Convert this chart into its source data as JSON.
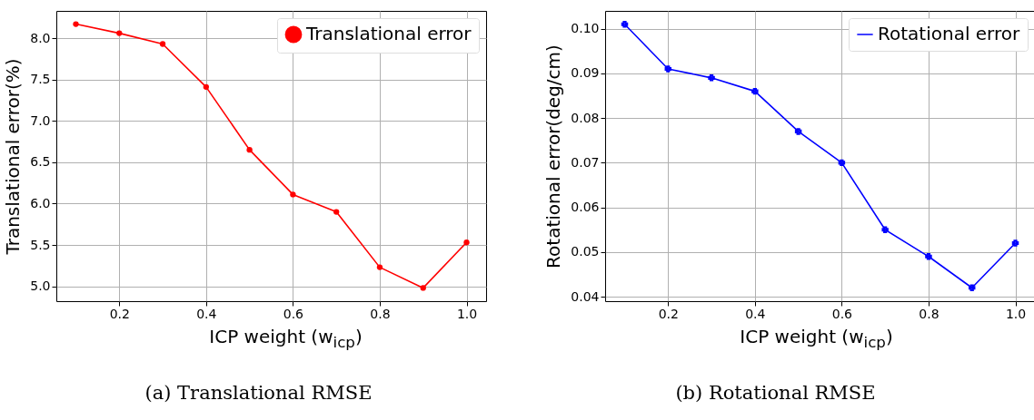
{
  "chart_data": [
    {
      "type": "line",
      "title": "(a) Translational RMSE",
      "xlabel": "ICP weight (w$_{icp}$)",
      "ylabel": "Translational error(%)",
      "x": [
        0.1,
        0.2,
        0.3,
        0.4,
        0.5,
        0.6,
        0.7,
        0.8,
        0.9,
        1.0
      ],
      "series": [
        {
          "name": "Translational error",
          "color": "#ff0000",
          "values": [
            8.17,
            8.06,
            7.93,
            7.41,
            6.65,
            6.11,
            5.9,
            5.23,
            4.98,
            5.53
          ]
        }
      ],
      "xlim": [
        0.055,
        1.045
      ],
      "xticks": [
        {
          "value": 0.2,
          "label": "0.2"
        },
        {
          "value": 0.4,
          "label": "0.4"
        },
        {
          "value": 0.6,
          "label": "0.6"
        },
        {
          "value": 0.8,
          "label": "0.8"
        },
        {
          "value": 1.0,
          "label": "1.0"
        }
      ],
      "ylim": [
        4.82,
        8.33
      ],
      "yticks": [
        {
          "value": 5.0,
          "label": "5.0"
        },
        {
          "value": 5.5,
          "label": "5.5"
        },
        {
          "value": 6.0,
          "label": "6.0"
        },
        {
          "value": 6.5,
          "label": "6.5"
        },
        {
          "value": 7.0,
          "label": "7.0"
        },
        {
          "value": 7.5,
          "label": "7.5"
        },
        {
          "value": 8.0,
          "label": "8.0"
        }
      ],
      "grid": true,
      "legend": "top right",
      "marker": "circle",
      "line_style": "solid"
    },
    {
      "type": "line",
      "title": "(b) Rotational RMSE",
      "xlabel": "ICP weight (w$_{icp}$)",
      "ylabel": "Rotational error(deg/cm)",
      "x": [
        0.1,
        0.2,
        0.3,
        0.4,
        0.5,
        0.6,
        0.7,
        0.8,
        0.9,
        1.0
      ],
      "series": [
        {
          "name": "Rotational error",
          "color": "#0000ff",
          "values": [
            0.101,
            0.091,
            0.089,
            0.086,
            0.077,
            0.07,
            0.055,
            0.049,
            0.042,
            0.052
          ]
        }
      ],
      "xlim": [
        0.055,
        1.045
      ],
      "xticks": [
        {
          "value": 0.2,
          "label": "0.2"
        },
        {
          "value": 0.4,
          "label": "0.4"
        },
        {
          "value": 0.6,
          "label": "0.6"
        },
        {
          "value": 0.8,
          "label": "0.8"
        },
        {
          "value": 1.0,
          "label": "1.0"
        }
      ],
      "ylim": [
        0.039,
        0.104
      ],
      "yticks": [
        {
          "value": 0.04,
          "label": "0.04"
        },
        {
          "value": 0.05,
          "label": "0.05"
        },
        {
          "value": 0.06,
          "label": "0.06"
        },
        {
          "value": 0.07,
          "label": "0.07"
        },
        {
          "value": 0.08,
          "label": "0.08"
        },
        {
          "value": 0.09,
          "label": "0.09"
        },
        {
          "value": 0.1,
          "label": "0.10"
        }
      ],
      "grid": true,
      "legend": "top right",
      "marker": "cross",
      "line_style": "solid"
    }
  ]
}
